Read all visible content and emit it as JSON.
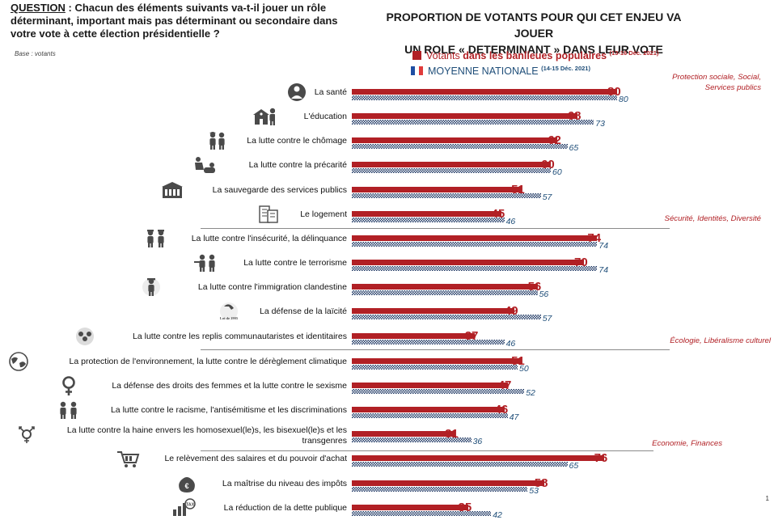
{
  "question": {
    "label": "QUESTION",
    "text": " : Chacun des éléments suivants va-t-il jouer un rôle déterminant, important mais pas déterminant ou secondaire dans votre vote à cette élection présidentielle ?",
    "base": "Base : votants"
  },
  "title_line1": "PROPORTION DE VOTANTS POUR QUI CET ENJEU VA JOUER",
  "title_line2": "UN ROLE « DETERMINANT » DANS LEUR VOTE",
  "legend": {
    "series1_prefix": "Votants ",
    "series1_bold": "dans les banlieues populaires",
    "series1_date": "(13-16 Déc. 2021)",
    "series2_label": "MOYENNE NATIONALE",
    "series2_date": "(14-15 Déc. 2021)"
  },
  "categories": [
    {
      "line1": "Protection sociale, Social,",
      "line2": "Services publics"
    },
    {
      "line1": "Sécurité, Identités, Diversité",
      "line2": ""
    },
    {
      "line1": "Écologie, Libéralisme culturel",
      "line2": ""
    },
    {
      "line1": "Economie, Finances",
      "line2": ""
    }
  ],
  "colors": {
    "series1": "#b12025",
    "series2": "#1f3864"
  },
  "chart_data": {
    "type": "bar",
    "orientation": "horizontal",
    "title": "PROPORTION DE VOTANTS POUR QUI CET ENJEU VA JOUER UN ROLE « DETERMINANT » DANS LEUR VOTE",
    "categories": [
      "La santé",
      "L'éducation",
      "La lutte contre le chômage",
      "La lutte contre la précarité",
      "La sauvegarde des services publics",
      "Le logement",
      "La lutte contre l'insécurité, la délinquance",
      "La lutte contre le terrorisme",
      "La lutte contre l'immigration clandestine",
      "La défense de la laïcité",
      "La lutte contre les replis communautaristes et identitaires",
      "La protection de l'environnement, la lutte contre le dérèglement climatique",
      "La défense des droits des femmes et la lutte contre le sexisme",
      "La lutte contre le racisme, l'antisémitisme et les discriminations",
      "La lutte contre la haine envers les homosexuel(le)s, les bisexuel(le)s et les transgenres",
      "Le relèvement des salaires et du pouvoir d'achat",
      "La maîtrise du niveau des impôts",
      "La réduction de la dette publique"
    ],
    "series": [
      {
        "name": "Votants dans les banlieues populaires (13-16 Déc. 2021)",
        "values": [
          80,
          68,
          62,
          60,
          51,
          45,
          74,
          70,
          56,
          49,
          37,
          51,
          47,
          46,
          31,
          76,
          58,
          35
        ]
      },
      {
        "name": "MOYENNE NATIONALE (14-15 Déc. 2021)",
        "values": [
          80,
          73,
          65,
          60,
          57,
          46,
          74,
          74,
          56,
          57,
          46,
          50,
          52,
          47,
          36,
          65,
          53,
          42
        ]
      }
    ],
    "xlim": [
      0,
      100
    ]
  },
  "icons": [
    "doctor-icon",
    "school-icon",
    "worker-icon",
    "homeless-icon",
    "public-building-icon",
    "apartment-icon",
    "police-icon",
    "soldier-icon",
    "border-guard-icon",
    "secularism-law-icon",
    "community-icon",
    "globe-icon",
    "female-symbol-icon",
    "people-diversity-icon",
    "gender-symbol-icon",
    "shopping-cart-icon",
    "money-bag-icon",
    "tax-chart-icon"
  ],
  "loi_text": "Loi de 1905",
  "page_number": "1"
}
